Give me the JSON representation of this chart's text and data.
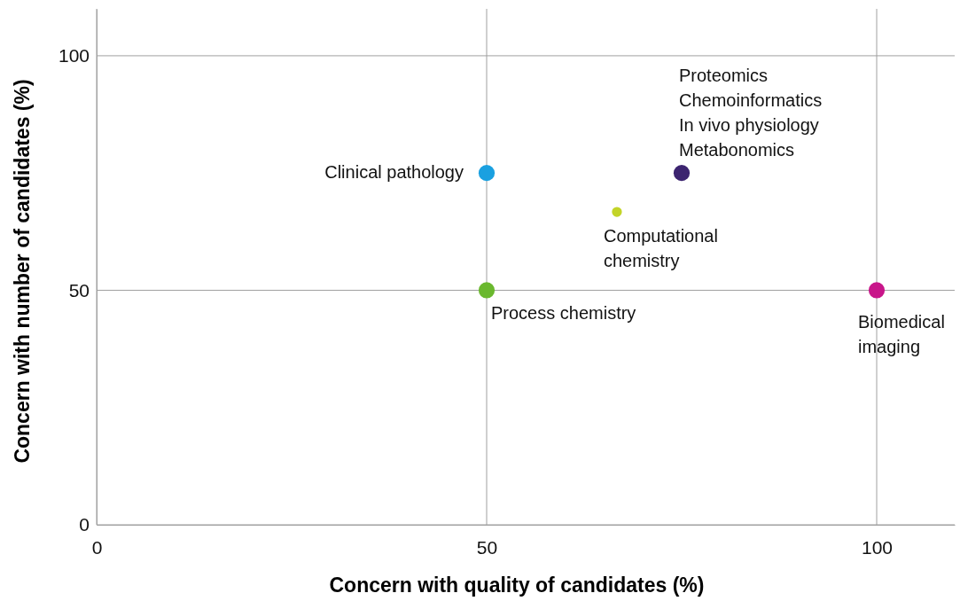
{
  "chart_data": {
    "type": "scatter",
    "xlabel": "Concern with quality of candidates (%)",
    "ylabel": "Concern with number of candidates (%)",
    "xlim": [
      0,
      110
    ],
    "ylim": [
      0,
      110
    ],
    "xticks": [
      0,
      50,
      100
    ],
    "yticks": [
      0,
      50,
      100
    ],
    "grid": true,
    "marker": "circle",
    "series": [
      {
        "color": "#1aa0e0",
        "x": [
          50
        ],
        "values": [
          75
        ]
      },
      {
        "color": "#6ab82e",
        "x": [
          50
        ],
        "values": [
          50
        ]
      },
      {
        "color": "#c3d428",
        "x": [
          66.7
        ],
        "values": [
          66.7
        ]
      },
      {
        "color": "#3c2470",
        "x": [
          75
        ],
        "values": [
          75
        ]
      },
      {
        "color": "#c8168a",
        "x": [
          100
        ],
        "values": [
          50
        ]
      }
    ],
    "annotations": [
      {
        "text": "Clinical pathology",
        "x": 50,
        "y": 75
      },
      {
        "text": "Process chemistry",
        "x": 50,
        "y": 50
      },
      {
        "text": "Computational\nchemistry",
        "x": 66.7,
        "y": 66.7
      },
      {
        "text": "Proteomics\nChemoinformatics\nIn vivo physiology\nMetabonomics",
        "x": 75,
        "y": 75
      },
      {
        "text": "Biomedical\nimaging",
        "x": 100,
        "y": 50
      }
    ]
  }
}
